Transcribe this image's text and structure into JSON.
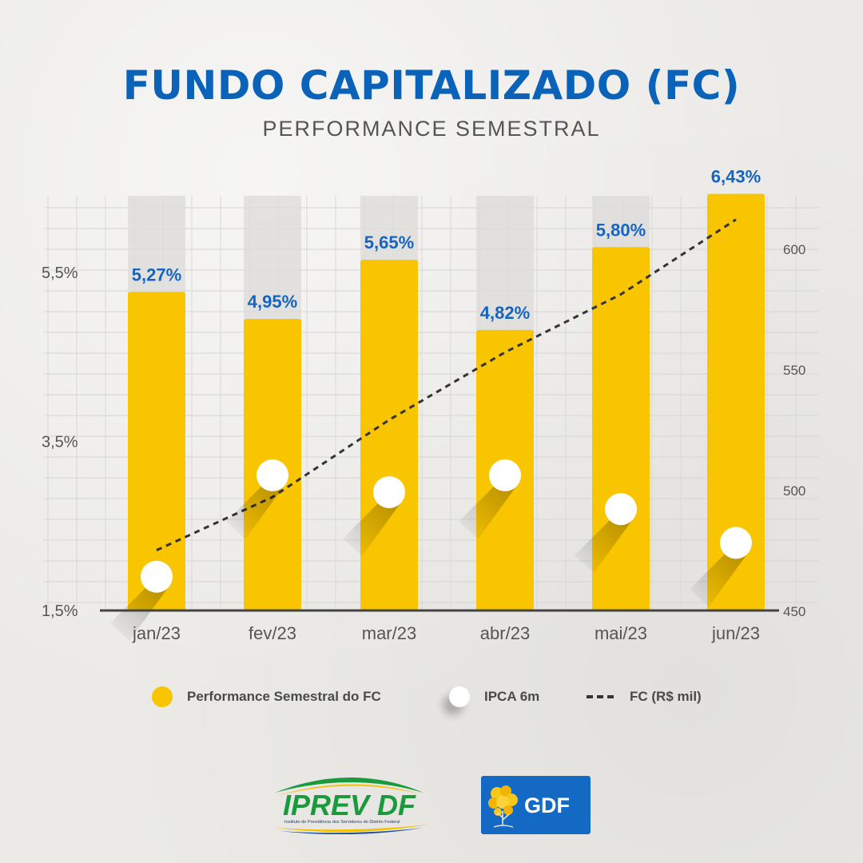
{
  "title": "FUNDO CAPITALIZADO (FC)",
  "subtitle": "PERFORMANCE SEMESTRAL",
  "colors": {
    "title": "#0a63b8",
    "bar": "#f9c400",
    "bar_label": "#1565c0",
    "ipca_dot": "#ffffff",
    "fc_line": "#333333",
    "gdf_blue": "#1469c4"
  },
  "chart_data": {
    "type": "bar",
    "categories": [
      "jan/23",
      "fev/23",
      "mar/23",
      "abr/23",
      "mai/23",
      "jun/23"
    ],
    "series": [
      {
        "name": "Performance Semestral do FC",
        "type": "bar",
        "axis": "left",
        "values": [
          5.27,
          4.95,
          5.65,
          4.82,
          5.8,
          6.43
        ],
        "labels": [
          "5,27%",
          "4,95%",
          "5,65%",
          "4,82%",
          "5,80%",
          "6,43%"
        ]
      },
      {
        "name": "IPCA 6m",
        "type": "scatter",
        "axis": "left",
        "values": [
          1.9,
          3.1,
          2.9,
          3.1,
          2.7,
          2.3
        ]
      },
      {
        "name": "FC (R$ mil)",
        "type": "line",
        "axis": "right",
        "values": [
          475,
          497,
          529,
          557,
          581,
          612
        ]
      }
    ],
    "y_left": {
      "ticks": [
        1.5,
        3.5,
        5.5
      ],
      "tick_labels": [
        "1,5%",
        "3,5%",
        "5,5%"
      ],
      "range": [
        1.5,
        6.6
      ]
    },
    "y_right": {
      "ticks": [
        450,
        500,
        550,
        600
      ],
      "tick_labels": [
        "450",
        "500",
        "550",
        "600"
      ],
      "range": [
        450,
        616
      ]
    },
    "grid": true,
    "legend_position": "bottom"
  },
  "legend": {
    "bar_label": "Performance Semestral do FC",
    "dot_label": "IPCA 6m",
    "line_label": "FC (R$ mil)"
  },
  "logos": {
    "iprev_name": "IPREV DF",
    "iprev_subtitle": "Instituto de Previdência dos Servidores do Distrito Federal",
    "gdf_name": "GDF"
  }
}
